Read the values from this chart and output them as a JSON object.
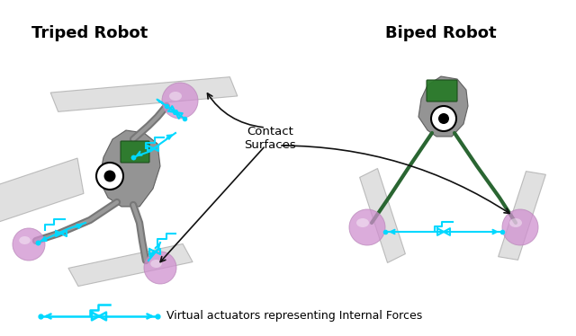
{
  "title_left": "Triped Robot",
  "title_right": "Biped Robot",
  "contact_label": "Contact\nSurfaces",
  "legend_label": "Virtual actuators representing Internal Forces",
  "bg_color": "#ffffff",
  "cyan_color": "#00d8ff",
  "arrow_color": "#111111",
  "sphere_color": "#d090d0",
  "sphere_alpha": 0.75,
  "surface_color": "#cccccc",
  "surface_alpha": 0.6,
  "dark_green": "#2a6632",
  "robot_gray": "#888888",
  "robot_dark": "#444444"
}
